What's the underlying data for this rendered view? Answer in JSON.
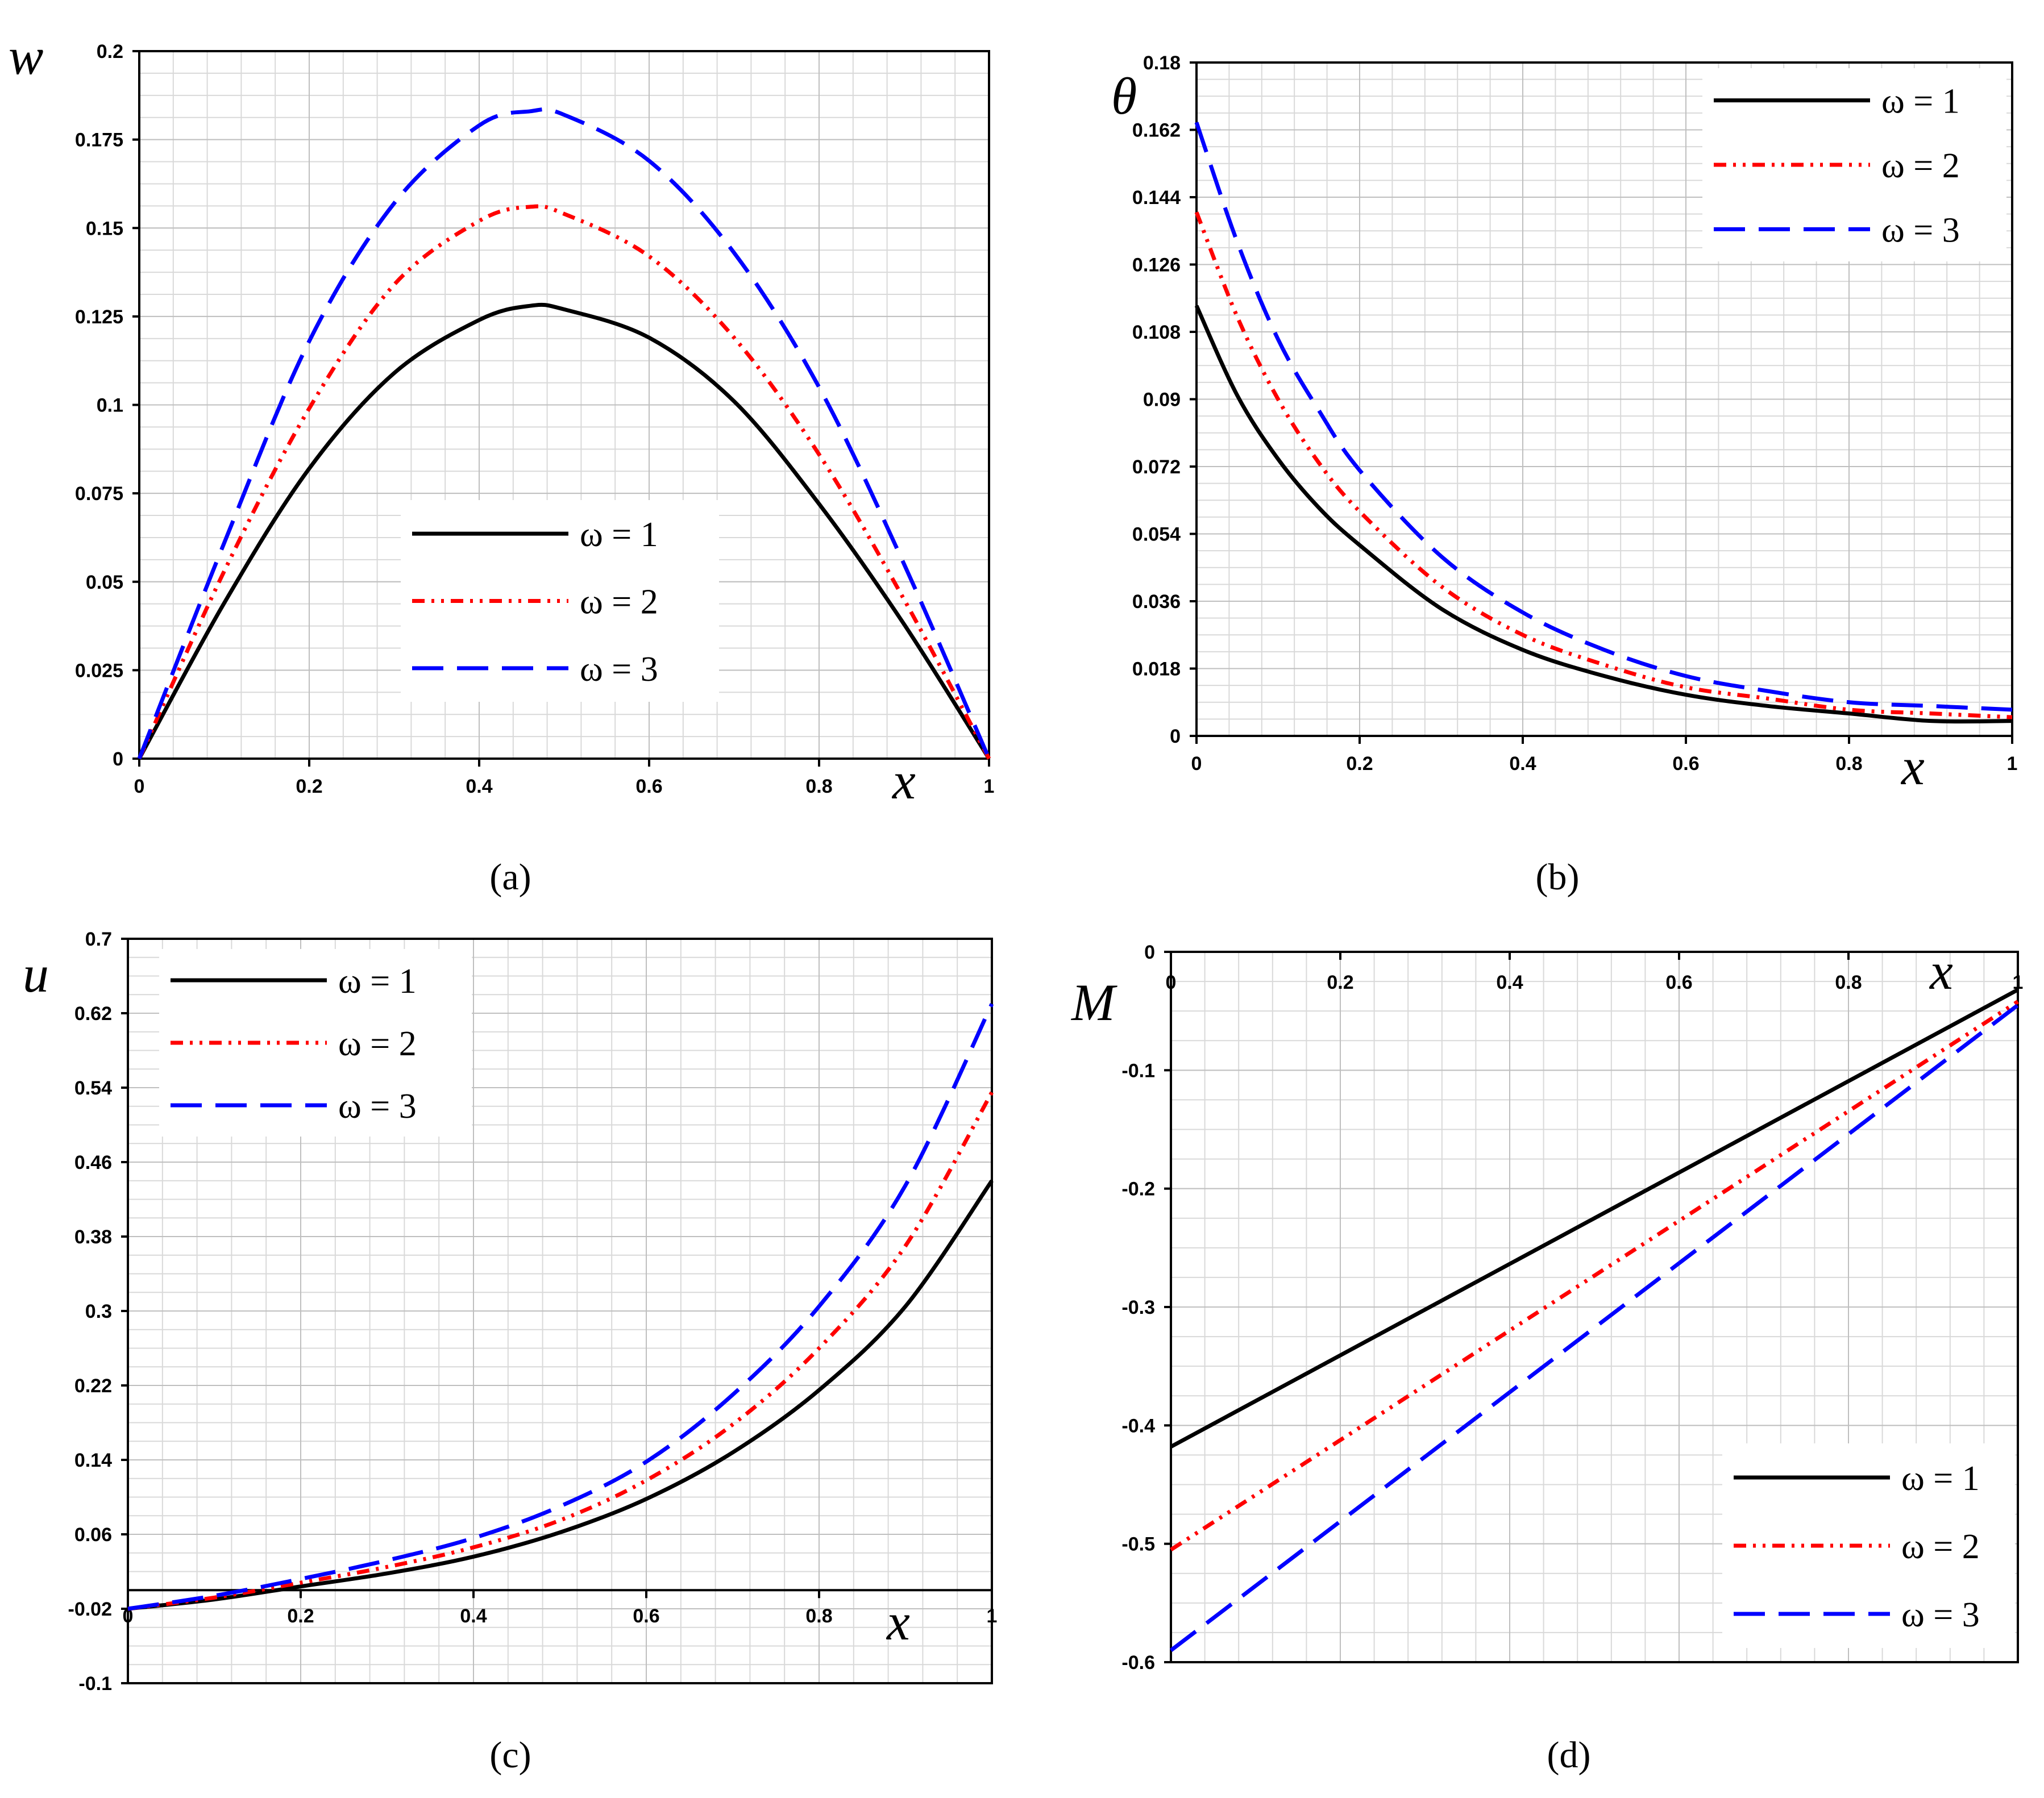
{
  "figure": {
    "legend_labels": [
      "ω = 1",
      "ω = 2",
      "ω = 3"
    ]
  },
  "chart_data": [
    {
      "id": "a",
      "type": "line",
      "caption": "(a)",
      "ylabel": "w",
      "xlabel": "x",
      "xlim": [
        0,
        1
      ],
      "ylim": [
        0,
        0.2
      ],
      "xticks": [
        "0",
        "0.2",
        "0.4",
        "0.6",
        "0.8",
        "1"
      ],
      "yticks": [
        "0",
        "0.025",
        "0.05",
        "0.075",
        "0.1",
        "0.125",
        "0.15",
        "0.175",
        "0.2"
      ],
      "grid": true,
      "legend_position": "center",
      "series": [
        {
          "name": "ω = 1",
          "color": "#000000",
          "x": [
            0,
            0.1,
            0.2,
            0.3,
            0.4,
            0.46,
            0.5,
            0.6,
            0.7,
            0.8,
            0.9,
            1.0
          ],
          "y": [
            0,
            0.044,
            0.082,
            0.109,
            0.124,
            0.128,
            0.127,
            0.119,
            0.101,
            0.072,
            0.038,
            0
          ]
        },
        {
          "name": "ω = 2",
          "color": "#ff0000",
          "x": [
            0,
            0.1,
            0.2,
            0.3,
            0.4,
            0.46,
            0.5,
            0.6,
            0.7,
            0.8,
            0.9,
            1.0
          ],
          "y": [
            0,
            0.053,
            0.099,
            0.134,
            0.152,
            0.156,
            0.154,
            0.142,
            0.119,
            0.086,
            0.045,
            0
          ]
        },
        {
          "name": "ω = 3",
          "color": "#0000ff",
          "x": [
            0,
            0.1,
            0.2,
            0.3,
            0.4,
            0.46,
            0.5,
            0.6,
            0.7,
            0.8,
            0.9,
            1.0
          ],
          "y": [
            0,
            0.061,
            0.118,
            0.157,
            0.179,
            0.183,
            0.182,
            0.169,
            0.143,
            0.105,
            0.055,
            0
          ]
        }
      ]
    },
    {
      "id": "b",
      "type": "line",
      "caption": "(b)",
      "ylabel": "θ",
      "xlabel": "x",
      "xlim": [
        0,
        1
      ],
      "ylim": [
        0,
        0.18
      ],
      "xticks": [
        "0",
        "0.2",
        "0.4",
        "0.6",
        "0.8",
        "1"
      ],
      "yticks": [
        "0",
        "0.018",
        "0.036",
        "0.054",
        "0.072",
        "0.09",
        "0.108",
        "0.126",
        "0.144",
        "0.162",
        "0.18"
      ],
      "grid": true,
      "legend_position": "top-right",
      "series": [
        {
          "name": "ω = 1",
          "color": "#000000",
          "x": [
            0,
            0.05,
            0.1,
            0.15,
            0.2,
            0.3,
            0.4,
            0.5,
            0.6,
            0.7,
            0.8,
            0.9,
            1.0
          ],
          "y": [
            0.115,
            0.091,
            0.074,
            0.061,
            0.051,
            0.034,
            0.023,
            0.016,
            0.011,
            0.008,
            0.006,
            0.004,
            0.004
          ]
        },
        {
          "name": "ω = 2",
          "color": "#ff0000",
          "x": [
            0,
            0.05,
            0.1,
            0.15,
            0.2,
            0.3,
            0.4,
            0.5,
            0.6,
            0.7,
            0.8,
            0.9,
            1.0
          ],
          "y": [
            0.14,
            0.112,
            0.09,
            0.073,
            0.06,
            0.04,
            0.027,
            0.019,
            0.013,
            0.01,
            0.007,
            0.006,
            0.005
          ]
        },
        {
          "name": "ω = 3",
          "color": "#0000ff",
          "x": [
            0,
            0.05,
            0.1,
            0.15,
            0.2,
            0.3,
            0.4,
            0.5,
            0.6,
            0.7,
            0.8,
            0.9,
            1.0
          ],
          "y": [
            0.164,
            0.132,
            0.106,
            0.087,
            0.071,
            0.048,
            0.033,
            0.023,
            0.016,
            0.012,
            0.009,
            0.008,
            0.007
          ]
        }
      ]
    },
    {
      "id": "c",
      "type": "line",
      "caption": "(c)",
      "ylabel": "u",
      "xlabel": "x",
      "xlim": [
        0,
        1
      ],
      "ylim": [
        -0.1,
        0.7
      ],
      "xticks": [
        "0",
        "0.2",
        "0.4",
        "0.6",
        "0.8",
        "1"
      ],
      "yticks": [
        "-0.1",
        "-0.02",
        "0.06",
        "0.14",
        "0.22",
        "0.3",
        "0.38",
        "0.46",
        "0.54",
        "0.62",
        "0.7"
      ],
      "grid": true,
      "legend_position": "top-left",
      "series": [
        {
          "name": "ω = 1",
          "color": "#000000",
          "x": [
            0,
            0.1,
            0.2,
            0.3,
            0.4,
            0.5,
            0.6,
            0.7,
            0.8,
            0.9,
            1.0
          ],
          "y": [
            -0.02,
            -0.01,
            0.004,
            0.018,
            0.036,
            0.062,
            0.098,
            0.148,
            0.215,
            0.305,
            0.44
          ]
        },
        {
          "name": "ω = 2",
          "color": "#ff0000",
          "x": [
            0,
            0.1,
            0.2,
            0.3,
            0.4,
            0.5,
            0.6,
            0.7,
            0.8,
            0.9,
            1.0
          ],
          "y": [
            -0.02,
            -0.008,
            0.008,
            0.025,
            0.046,
            0.075,
            0.118,
            0.178,
            0.26,
            0.37,
            0.535
          ]
        },
        {
          "name": "ω = 3",
          "color": "#0000ff",
          "x": [
            0,
            0.1,
            0.2,
            0.3,
            0.4,
            0.5,
            0.6,
            0.7,
            0.8,
            0.9,
            1.0
          ],
          "y": [
            -0.02,
            -0.006,
            0.012,
            0.032,
            0.056,
            0.09,
            0.138,
            0.21,
            0.305,
            0.435,
            0.63
          ]
        }
      ]
    },
    {
      "id": "d",
      "type": "line",
      "caption": "(d)",
      "ylabel": "M",
      "xlabel": "x",
      "xlim": [
        0,
        1
      ],
      "ylim": [
        -0.6,
        0
      ],
      "xticks": [
        "0",
        "0.2",
        "0.4",
        "0.6",
        "0.8",
        "1"
      ],
      "yticks": [
        "-0.6",
        "-0.5",
        "-0.4",
        "-0.3",
        "-0.2",
        "-0.1",
        "0"
      ],
      "grid": true,
      "legend_position": "bottom-right",
      "series": [
        {
          "name": "ω = 1",
          "color": "#000000",
          "x": [
            0,
            1
          ],
          "y": [
            -0.418,
            -0.032
          ]
        },
        {
          "name": "ω = 2",
          "color": "#ff0000",
          "x": [
            0,
            1
          ],
          "y": [
            -0.505,
            -0.042
          ]
        },
        {
          "name": "ω = 3",
          "color": "#0000ff",
          "x": [
            0,
            1
          ],
          "y": [
            -0.59,
            -0.045
          ]
        }
      ]
    }
  ]
}
